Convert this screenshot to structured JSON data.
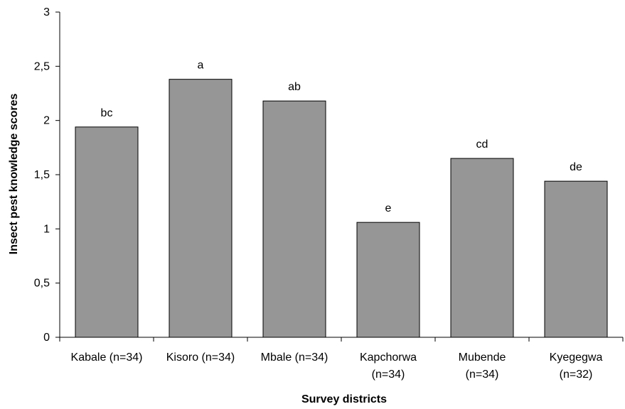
{
  "chart_data": {
    "type": "bar",
    "title": "",
    "xlabel": "Survey districts",
    "ylabel": "Insect pest knowledge scores",
    "categories": [
      [
        "Kabale (n=34)"
      ],
      [
        "Kisoro (n=34)"
      ],
      [
        "Mbale (n=34)"
      ],
      [
        "Kapchorwa",
        "(n=34)"
      ],
      [
        "Mubende",
        "(n=34)"
      ],
      [
        "Kyegegwa",
        "(n=32)"
      ]
    ],
    "values": [
      1.94,
      2.38,
      2.18,
      1.06,
      1.65,
      1.44
    ],
    "data_labels": [
      "bc",
      "a",
      "ab",
      "e",
      "cd",
      "de"
    ],
    "ylim": [
      0,
      3
    ],
    "yticks": [
      0,
      0.5,
      1,
      1.5,
      2,
      2.5,
      3
    ],
    "ytick_labels": [
      "0",
      "0,5",
      "1",
      "1,5",
      "2",
      "2,5",
      "3"
    ],
    "grid": false,
    "legend": "none",
    "bar_color": "#969696",
    "bar_edge_color": "#000000"
  }
}
